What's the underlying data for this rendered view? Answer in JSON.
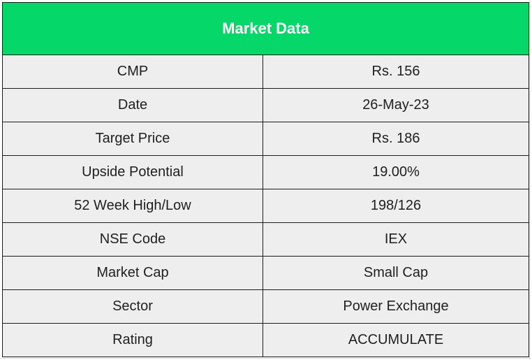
{
  "table": {
    "title": "Market Data",
    "rows": [
      {
        "label": "CMP",
        "value": "Rs. 156"
      },
      {
        "label": "Date",
        "value": "26-May-23"
      },
      {
        "label": "Target Price",
        "value": "Rs. 186"
      },
      {
        "label": "Upside Potential",
        "value": "19.00%"
      },
      {
        "label": "52 Week High/Low",
        "value": "198/126"
      },
      {
        "label": "NSE Code",
        "value": "IEX"
      },
      {
        "label": "Market Cap",
        "value": "Small Cap"
      },
      {
        "label": "Sector",
        "value": "Power Exchange"
      },
      {
        "label": "Rating",
        "value": "ACCUMULATE"
      }
    ]
  },
  "colors": {
    "header_bg": "#06d769",
    "header_text": "#ffffff",
    "cell_bg": "#eeeeee",
    "border": "#1c1c1c"
  }
}
